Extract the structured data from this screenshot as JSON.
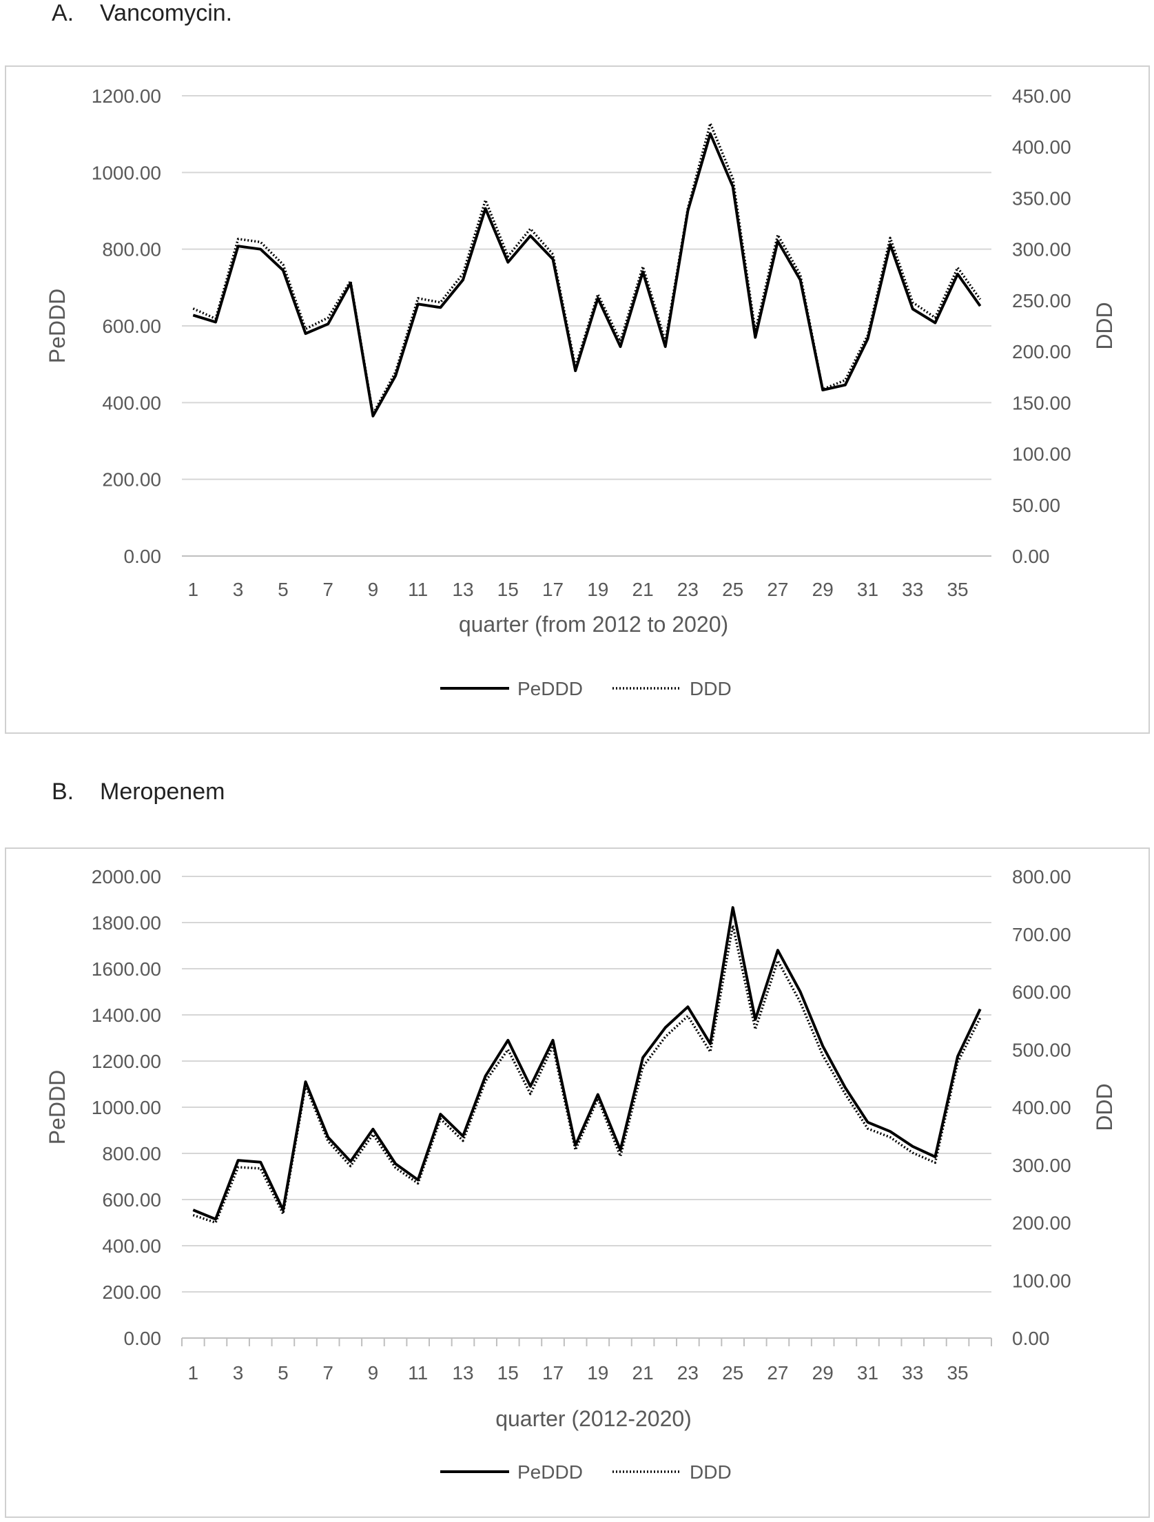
{
  "panels": [
    {
      "label_letter": "A.",
      "label_text": "Vancomycin.",
      "chart_data": {
        "type": "line",
        "title": "",
        "xlabel": "quarter (from 2012 to 2020)",
        "ylabel_left": "PeDDD",
        "ylabel_right": "DDD",
        "x": [
          1,
          2,
          3,
          4,
          5,
          6,
          7,
          8,
          9,
          10,
          11,
          12,
          13,
          14,
          15,
          16,
          17,
          18,
          19,
          20,
          21,
          22,
          23,
          24,
          25,
          26,
          27,
          28,
          29,
          30,
          31,
          32,
          33,
          34,
          35,
          36
        ],
        "x_tick_labels": [
          "1",
          "3",
          "5",
          "7",
          "9",
          "11",
          "13",
          "15",
          "17",
          "19",
          "21",
          "23",
          "25",
          "27",
          "29",
          "31",
          "33",
          "35"
        ],
        "ylim_left": [
          0,
          1200
        ],
        "ylim_right": [
          0,
          450
        ],
        "y_ticks_left": [
          "0.00",
          "200.00",
          "400.00",
          "600.00",
          "800.00",
          "1000.00",
          "1200.00"
        ],
        "y_ticks_right": [
          "0.00",
          "50.00",
          "100.00",
          "150.00",
          "200.00",
          "250.00",
          "300.00",
          "350.00",
          "400.00",
          "450.00"
        ],
        "grid": true,
        "legend_position": "bottom",
        "series": [
          {
            "name": "PeDDD",
            "axis": "left",
            "style": "solid",
            "values": [
              628,
              610,
              808,
              800,
              745,
              580,
              605,
              712,
              365,
              470,
              657,
              648,
              720,
              906,
              766,
              835,
              774,
              483,
              672,
              546,
              741,
              546,
              900,
              1101,
              963,
              570,
              821,
              720,
              433,
              446,
              566,
              812,
              644,
              608,
              735,
              652
            ]
          },
          {
            "name": "DDD",
            "axis": "right",
            "style": "dotted",
            "values": [
              242,
              232,
              310,
              307,
              285,
              222,
              233,
              269,
              139,
              180,
              252,
              248,
              276,
              348,
              293,
              320,
              295,
              185,
              256,
              210,
              283,
              210,
              340,
              423,
              369,
              220,
              314,
              275,
              163,
              172,
              216,
              311,
              248,
              233,
              282,
              251
            ]
          }
        ]
      }
    },
    {
      "label_letter": "B.",
      "label_text": "Meropenem",
      "chart_data": {
        "type": "line",
        "title": "",
        "xlabel": "quarter (2012-2020)",
        "ylabel_left": "PeDDD",
        "ylabel_right": "DDD",
        "x": [
          1,
          2,
          3,
          4,
          5,
          6,
          7,
          8,
          9,
          10,
          11,
          12,
          13,
          14,
          15,
          16,
          17,
          18,
          19,
          20,
          21,
          22,
          23,
          24,
          25,
          26,
          27,
          28,
          29,
          30,
          31,
          32,
          33,
          34,
          35,
          36
        ],
        "x_tick_labels": [
          "1",
          "3",
          "5",
          "7",
          "9",
          "11",
          "13",
          "15",
          "17",
          "19",
          "21",
          "23",
          "25",
          "27",
          "29",
          "31",
          "33",
          "35"
        ],
        "ylim_left": [
          0,
          2000
        ],
        "ylim_right": [
          0,
          800
        ],
        "y_ticks_left": [
          "0.00",
          "200.00",
          "400.00",
          "600.00",
          "800.00",
          "1000.00",
          "1200.00",
          "1400.00",
          "1600.00",
          "1800.00",
          "2000.00"
        ],
        "y_ticks_right": [
          "0.00",
          "100.00",
          "200.00",
          "300.00",
          "400.00",
          "500.00",
          "600.00",
          "700.00",
          "800.00"
        ],
        "grid": true,
        "legend_position": "bottom",
        "series": [
          {
            "name": "PeDDD",
            "axis": "left",
            "style": "solid",
            "values": [
              555,
              515,
              770,
              762,
              555,
              1110,
              870,
              765,
              905,
              755,
              685,
              970,
              875,
              1135,
              1290,
              1090,
              1290,
              835,
              1055,
              815,
              1215,
              1345,
              1435,
              1275,
              1865,
              1380,
              1680,
              1500,
              1265,
              1085,
              935,
              895,
              830,
              785,
              1220,
              1425
            ]
          },
          {
            "name": "DDD",
            "axis": "right",
            "style": "dotted",
            "values": [
              213,
              200,
              296,
              294,
              215,
              437,
              341,
              298,
              353,
              295,
              268,
              380,
              342,
              445,
              500,
              423,
              506,
              326,
              415,
              315,
              470,
              522,
              558,
              496,
              715,
              535,
              654,
              582,
              490,
              423,
              363,
              348,
              321,
              304,
              478,
              555
            ]
          }
        ]
      }
    }
  ]
}
